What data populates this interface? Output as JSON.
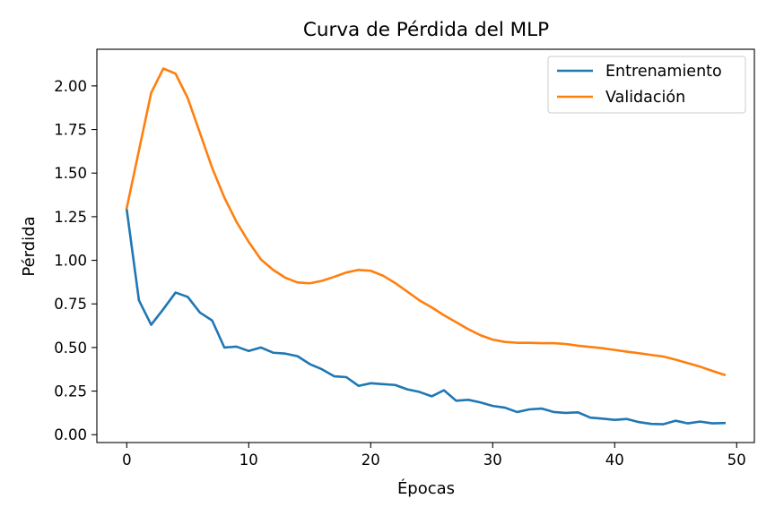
{
  "chart_data": {
    "type": "line",
    "title": "Curva de Pérdida del MLP",
    "xlabel": "Épocas",
    "ylabel": "Pérdida",
    "xlim": [
      -2.45,
      51.45
    ],
    "ylim": [
      -0.045,
      2.21
    ],
    "xticks": [
      0,
      10,
      20,
      30,
      40,
      50
    ],
    "xtick_labels": [
      "0",
      "10",
      "20",
      "30",
      "40",
      "50"
    ],
    "yticks": [
      0.0,
      0.25,
      0.5,
      0.75,
      1.0,
      1.25,
      1.5,
      1.75,
      2.0
    ],
    "ytick_labels": [
      "0.00",
      "0.25",
      "0.50",
      "0.75",
      "1.00",
      "1.25",
      "1.50",
      "1.75",
      "2.00"
    ],
    "grid": false,
    "legend_position": "top-right",
    "x": [
      0,
      1,
      2,
      3,
      4,
      5,
      6,
      7,
      8,
      9,
      10,
      11,
      12,
      13,
      14,
      15,
      16,
      17,
      18,
      19,
      20,
      21,
      22,
      23,
      24,
      25,
      26,
      27,
      28,
      29,
      30,
      31,
      32,
      33,
      34,
      35,
      36,
      37,
      38,
      39,
      40,
      41,
      42,
      43,
      44,
      45,
      46,
      47,
      48,
      49
    ],
    "series": [
      {
        "name": "Entrenamiento",
        "color": "#1f77b4",
        "values": [
          1.29,
          0.77,
          0.63,
          0.72,
          0.815,
          0.79,
          0.7,
          0.655,
          0.5,
          0.505,
          0.48,
          0.5,
          0.47,
          0.465,
          0.45,
          0.405,
          0.375,
          0.335,
          0.33,
          0.28,
          0.295,
          0.29,
          0.285,
          0.26,
          0.245,
          0.22,
          0.255,
          0.195,
          0.2,
          0.185,
          0.165,
          0.155,
          0.13,
          0.145,
          0.15,
          0.13,
          0.125,
          0.128,
          0.098,
          0.092,
          0.085,
          0.09,
          0.072,
          0.062,
          0.06,
          0.08,
          0.065,
          0.075,
          0.065,
          0.067
        ]
      },
      {
        "name": "Validación",
        "color": "#ff7f0e",
        "values": [
          1.3,
          1.63,
          1.96,
          2.1,
          2.07,
          1.93,
          1.73,
          1.53,
          1.36,
          1.22,
          1.105,
          1.005,
          0.945,
          0.9,
          0.873,
          0.868,
          0.882,
          0.905,
          0.93,
          0.945,
          0.94,
          0.912,
          0.87,
          0.82,
          0.77,
          0.73,
          0.685,
          0.645,
          0.605,
          0.57,
          0.545,
          0.532,
          0.527,
          0.527,
          0.525,
          0.525,
          0.52,
          0.51,
          0.503,
          0.496,
          0.486,
          0.476,
          0.467,
          0.457,
          0.448,
          0.43,
          0.41,
          0.39,
          0.366,
          0.343
        ]
      }
    ]
  }
}
